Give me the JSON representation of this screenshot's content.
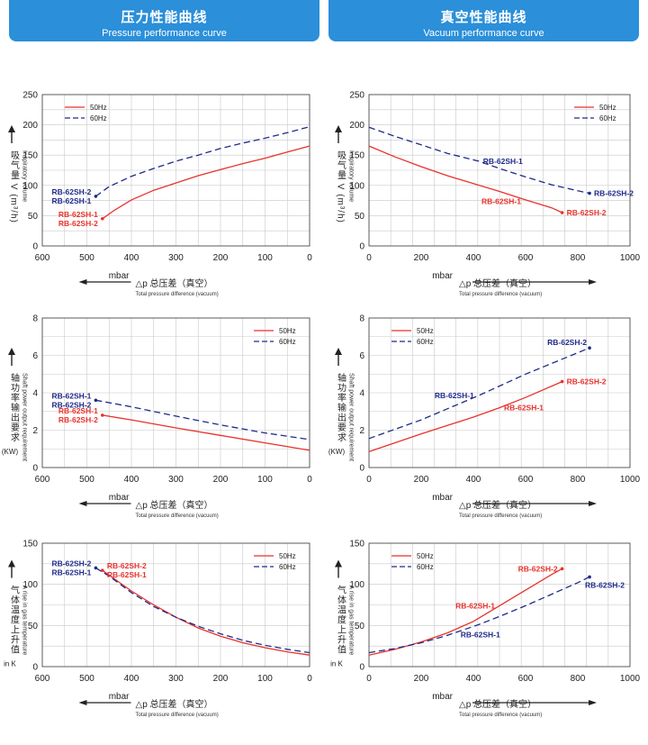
{
  "header": {
    "left_title": "压力性能曲线",
    "left_subtitle": "Pressure performance curve",
    "right_title": "真空性能曲线",
    "right_subtitle": "Vacuum performance curve"
  },
  "colors": {
    "header_bg": "#2b8fd9",
    "red": "#e8322b",
    "blue": "#1f2a8a",
    "grid": "#c8c8c8"
  },
  "chart_data": [
    {
      "type": "line",
      "panel": "pressure-volume",
      "xlim": [
        600,
        0
      ],
      "ylim": [
        0,
        250
      ],
      "xticks": [
        600,
        500,
        400,
        300,
        200,
        100,
        0
      ],
      "yticks": [
        0,
        50,
        100,
        150,
        200,
        250
      ],
      "ylabel_cn": "吸气量 V (m³/h)",
      "ylabel_en": "Inspiratory volume",
      "xlabel_unit": "mbar",
      "xlabel_cn": "△p  总压差（真空）",
      "xlabel_en": "Total pressure difference (vacuum)",
      "legend": "top-left",
      "series": [
        {
          "name": "50Hz",
          "style": "solid",
          "color": "#e8322b",
          "points": [
            [
              465,
              45
            ],
            [
              440,
              58
            ],
            [
              400,
              76
            ],
            [
              350,
              92
            ],
            [
              300,
              104
            ],
            [
              250,
              116
            ],
            [
              200,
              126
            ],
            [
              150,
              136
            ],
            [
              100,
              145
            ],
            [
              50,
              155
            ],
            [
              0,
              165
            ]
          ]
        },
        {
          "name": "60Hz",
          "style": "dashed",
          "color": "#1f2a8a",
          "points": [
            [
              480,
              82
            ],
            [
              450,
              98
            ],
            [
              400,
              115
            ],
            [
              350,
              128
            ],
            [
              300,
              140
            ],
            [
              250,
              150
            ],
            [
              200,
              161
            ],
            [
              150,
              170
            ],
            [
              100,
              178
            ],
            [
              50,
              187
            ],
            [
              0,
              197
            ]
          ]
        }
      ],
      "annotations": [
        {
          "lines": [
            "RB-62SH-2",
            "RB-62SH-1"
          ],
          "color": "#1f2a8a",
          "x": 480,
          "y": 82,
          "side": "left"
        },
        {
          "lines": [
            "RB-62SH-1",
            "RB-62SH-2"
          ],
          "color": "#e8322b",
          "x": 465,
          "y": 45,
          "side": "left"
        }
      ]
    },
    {
      "type": "line",
      "panel": "vacuum-volume",
      "xlim": [
        0,
        1000
      ],
      "ylim": [
        0,
        250
      ],
      "xticks": [
        0,
        200,
        400,
        600,
        800,
        1000
      ],
      "yticks": [
        0,
        50,
        100,
        150,
        200,
        250
      ],
      "ylabel_cn": "吸气量 V (m³/h)",
      "ylabel_en": "Inspiratory volume",
      "xlabel_unit": "mbar",
      "xlabel_cn": "△p  总压差（真空）",
      "xlabel_en": "Total pressure difference (vacuum)",
      "legend": "top-right",
      "series": [
        {
          "name": "50Hz",
          "style": "solid",
          "color": "#e8322b",
          "points": [
            [
              0,
              165
            ],
            [
              100,
              147
            ],
            [
              200,
              131
            ],
            [
              300,
              116
            ],
            [
              400,
              103
            ],
            [
              500,
              90
            ],
            [
              600,
              76
            ],
            [
              700,
              63
            ],
            [
              740,
              55
            ]
          ]
        },
        {
          "name": "60Hz",
          "style": "dashed",
          "color": "#1f2a8a",
          "points": [
            [
              0,
              196
            ],
            [
              100,
              181
            ],
            [
              200,
              167
            ],
            [
              300,
              153
            ],
            [
              420,
              140
            ],
            [
              500,
              128
            ],
            [
              600,
              114
            ],
            [
              700,
              101
            ],
            [
              800,
              91
            ],
            [
              845,
              87
            ]
          ]
        }
      ],
      "annotations": [
        {
          "lines": [
            "RB-62SH-1"
          ],
          "color": "#1f2a8a",
          "x": 420,
          "y": 140,
          "side": "right"
        },
        {
          "lines": [
            "RB-62SH-2"
          ],
          "color": "#1f2a8a",
          "x": 845,
          "y": 87,
          "side": "right"
        },
        {
          "lines": [
            "RB-62SH-1"
          ],
          "color": "#e8322b",
          "x": 500,
          "y": 90,
          "side": "below"
        },
        {
          "lines": [
            "RB-62SH-2"
          ],
          "color": "#e8322b",
          "x": 740,
          "y": 55,
          "side": "right"
        }
      ]
    },
    {
      "type": "line",
      "panel": "pressure-power",
      "xlim": [
        600,
        0
      ],
      "ylim": [
        0,
        8
      ],
      "xticks": [
        600,
        500,
        400,
        300,
        200,
        100,
        0
      ],
      "yticks": [
        0,
        2,
        4,
        6,
        8
      ],
      "ylabel_cn": "轴功率输出要求",
      "ylabel_en": "Shaft power output requirement",
      "ylabel_unit": "(KW)",
      "xlabel_unit": "mbar",
      "xlabel_cn": "△p  总压差（真空）",
      "xlabel_en": "Total pressure difference (vacuum)",
      "legend": "top-right",
      "series": [
        {
          "name": "50Hz",
          "style": "solid",
          "color": "#e8322b",
          "points": [
            [
              465,
              2.8
            ],
            [
              400,
              2.55
            ],
            [
              300,
              2.12
            ],
            [
              200,
              1.72
            ],
            [
              100,
              1.32
            ],
            [
              0,
              0.92
            ]
          ]
        },
        {
          "name": "60Hz",
          "style": "dashed",
          "color": "#1f2a8a",
          "points": [
            [
              480,
              3.6
            ],
            [
              400,
              3.25
            ],
            [
              300,
              2.75
            ],
            [
              200,
              2.28
            ],
            [
              100,
              1.85
            ],
            [
              0,
              1.5
            ]
          ]
        }
      ],
      "annotations": [
        {
          "lines": [
            "RB-62SH-1",
            "RB-62SH-2"
          ],
          "color": "#1f2a8a",
          "x": 480,
          "y": 3.6,
          "side": "left"
        },
        {
          "lines": [
            "RB-62SH-1",
            "RB-62SH-2"
          ],
          "color": "#e8322b",
          "x": 465,
          "y": 2.8,
          "side": "left"
        }
      ]
    },
    {
      "type": "line",
      "panel": "vacuum-power",
      "xlim": [
        0,
        1000
      ],
      "ylim": [
        0,
        8
      ],
      "xticks": [
        0,
        200,
        400,
        600,
        800,
        1000
      ],
      "yticks": [
        0,
        2,
        4,
        6,
        8
      ],
      "ylabel_cn": "轴功率输出要求",
      "ylabel_en": "Shaft power output requirement",
      "ylabel_unit": "(KW)",
      "xlabel_unit": "mbar",
      "xlabel_cn": "△p  总压差（真空）",
      "xlabel_en": "Total pressure difference (vacuum)",
      "legend": "top-left",
      "series": [
        {
          "name": "50Hz",
          "style": "solid",
          "color": "#e8322b",
          "points": [
            [
              0,
              0.85
            ],
            [
              200,
              1.8
            ],
            [
              400,
              2.7
            ],
            [
              500,
              3.2
            ],
            [
              600,
              3.75
            ],
            [
              740,
              4.6
            ]
          ]
        },
        {
          "name": "60Hz",
          "style": "dashed",
          "color": "#1f2a8a",
          "points": [
            [
              0,
              1.55
            ],
            [
              200,
              2.55
            ],
            [
              420,
              3.85
            ],
            [
              600,
              5.0
            ],
            [
              845,
              6.4
            ]
          ]
        }
      ],
      "annotations": [
        {
          "lines": [
            "RB-62SH-2"
          ],
          "color": "#1f2a8a",
          "x": 845,
          "y": 6.4,
          "side": "above-left"
        },
        {
          "lines": [
            "RB-62SH-1"
          ],
          "color": "#1f2a8a",
          "x": 420,
          "y": 3.85,
          "side": "left"
        },
        {
          "lines": [
            "RB-62SH-2"
          ],
          "color": "#e8322b",
          "x": 740,
          "y": 4.6,
          "side": "right"
        },
        {
          "lines": [
            "RB-62SH-1"
          ],
          "color": "#e8322b",
          "x": 500,
          "y": 3.2,
          "side": "right"
        }
      ]
    },
    {
      "type": "line",
      "panel": "pressure-temperature",
      "xlim": [
        600,
        0
      ],
      "ylim": [
        0,
        150
      ],
      "xticks": [
        600,
        500,
        400,
        300,
        200,
        100,
        0
      ],
      "yticks": [
        0,
        50,
        100,
        150
      ],
      "ylabel_cn": "气体温度上升值",
      "ylabel_en": "A rise in gas temperature",
      "ylabel_unit": "in K",
      "xlabel_unit": "mbar",
      "xlabel_cn": "△p  总压差（真空）",
      "xlabel_en": "Total pressure difference (vacuum)",
      "legend": "top-right",
      "series": [
        {
          "name": "50Hz",
          "style": "solid",
          "color": "#e8322b",
          "points": [
            [
              465,
              117
            ],
            [
              400,
              92
            ],
            [
              350,
              75
            ],
            [
              300,
              60
            ],
            [
              250,
              47
            ],
            [
              200,
              37
            ],
            [
              150,
              29
            ],
            [
              100,
              23
            ],
            [
              50,
              18
            ],
            [
              0,
              14
            ]
          ]
        },
        {
          "name": "60Hz",
          "style": "dashed",
          "color": "#1f2a8a",
          "points": [
            [
              480,
              120
            ],
            [
              450,
              110
            ],
            [
              400,
              90
            ],
            [
              350,
              73
            ],
            [
              300,
              60
            ],
            [
              250,
              49
            ],
            [
              200,
              40
            ],
            [
              150,
              32
            ],
            [
              100,
              26
            ],
            [
              50,
              21
            ],
            [
              0,
              17
            ]
          ]
        }
      ],
      "annotations": [
        {
          "lines": [
            "RB-62SH-2",
            "RB-62SH-1"
          ],
          "color": "#1f2a8a",
          "x": 480,
          "y": 120,
          "side": "left"
        },
        {
          "lines": [
            "RB-62SH-2",
            "RB-62SH-1"
          ],
          "color": "#e8322b",
          "x": 465,
          "y": 117,
          "side": "right"
        }
      ]
    },
    {
      "type": "line",
      "panel": "vacuum-temperature",
      "xlim": [
        0,
        1000
      ],
      "ylim": [
        0,
        150
      ],
      "xticks": [
        0,
        200,
        400,
        600,
        800,
        1000
      ],
      "yticks": [
        0,
        50,
        100,
        150
      ],
      "ylabel_cn": "气体温度上升值",
      "ylabel_en": "A rise in gas temperature",
      "ylabel_unit": "in K",
      "xlabel_unit": "mbar",
      "xlabel_cn": "△p  总压差（真空）",
      "xlabel_en": "Total pressure difference (vacuum)",
      "legend": "top-left",
      "series": [
        {
          "name": "50Hz",
          "style": "solid",
          "color": "#e8322b",
          "points": [
            [
              0,
              14
            ],
            [
              100,
              21
            ],
            [
              200,
              30
            ],
            [
              300,
              41
            ],
            [
              400,
              55
            ],
            [
              500,
              74
            ],
            [
              600,
              93
            ],
            [
              700,
              112
            ],
            [
              740,
              119
            ]
          ]
        },
        {
          "name": "60Hz",
          "style": "dashed",
          "color": "#1f2a8a",
          "points": [
            [
              0,
              17
            ],
            [
              100,
              22
            ],
            [
              200,
              29
            ],
            [
              300,
              38
            ],
            [
              420,
              51
            ],
            [
              500,
              61
            ],
            [
              600,
              74
            ],
            [
              700,
              88
            ],
            [
              800,
              102
            ],
            [
              845,
              109
            ]
          ]
        }
      ],
      "annotations": [
        {
          "lines": [
            "RB-62SH-2"
          ],
          "color": "#e8322b",
          "x": 740,
          "y": 119,
          "side": "left"
        },
        {
          "lines": [
            "RB-62SH-2"
          ],
          "color": "#1f2a8a",
          "x": 845,
          "y": 109,
          "side": "below-right"
        },
        {
          "lines": [
            "RB-62SH-1"
          ],
          "color": "#e8322b",
          "x": 500,
          "y": 74,
          "side": "left"
        },
        {
          "lines": [
            "RB-62SH-1"
          ],
          "color": "#1f2a8a",
          "x": 420,
          "y": 51,
          "side": "below"
        }
      ]
    }
  ]
}
